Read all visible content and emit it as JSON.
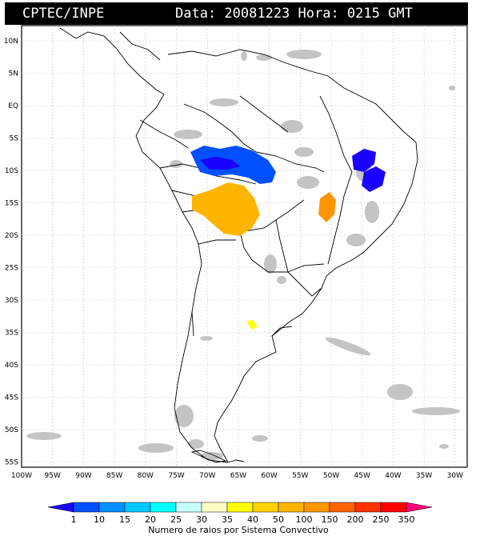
{
  "header": {
    "agency": "CPTEC/INPE",
    "datetime": "Data: 20081223 Hora: 0215 GMT"
  },
  "map": {
    "lat_labels": [
      "10N",
      "5N",
      "EQ",
      "5S",
      "10S",
      "15S",
      "20S",
      "25S",
      "30S",
      "35S",
      "40S",
      "45S",
      "50S",
      "55S"
    ],
    "lon_labels": [
      "100W",
      "95W",
      "90W",
      "85W",
      "80W",
      "75W",
      "70W",
      "65W",
      "60W",
      "55W",
      "50W",
      "45W",
      "40W",
      "35W",
      "30W"
    ]
  },
  "legend": {
    "title": "Numero de raios por Sistema Convectivo",
    "levels": [
      "1",
      "10",
      "15",
      "20",
      "25",
      "30",
      "35",
      "40",
      "50",
      "100",
      "150",
      "200",
      "250",
      "350"
    ],
    "colors": [
      "#1a00ff",
      "#0050ff",
      "#0090ff",
      "#00c8ff",
      "#00ffff",
      "#c8ffff",
      "#ffffc8",
      "#ffff00",
      "#ffd200",
      "#ffb400",
      "#ff9600",
      "#ff6400",
      "#ff3200",
      "#ff0000",
      "#ff0078"
    ]
  }
}
